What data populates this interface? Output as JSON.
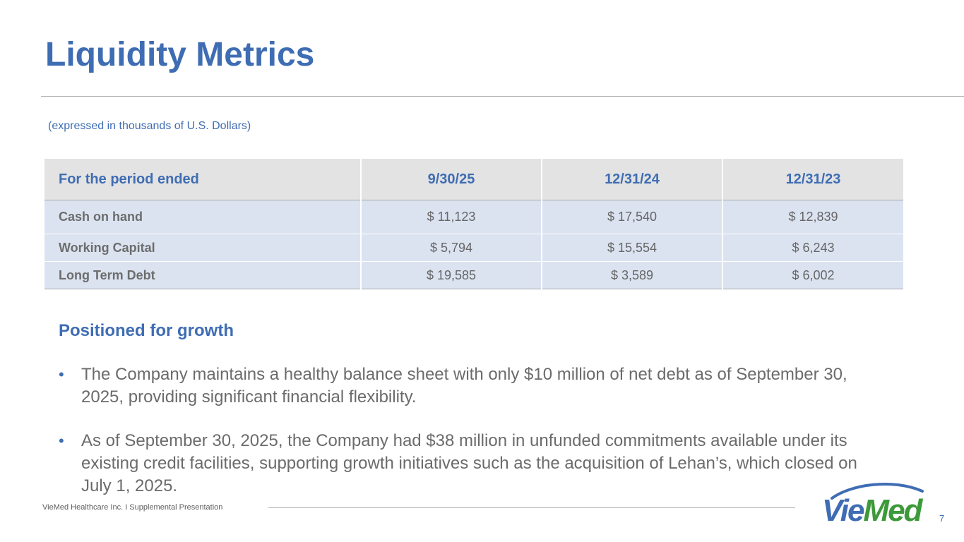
{
  "slide": {
    "title": "Liquidity Metrics",
    "units_note": "(expressed in thousands of U.S. Dollars)",
    "page_number": "7"
  },
  "table": {
    "headers": [
      "For the period ended",
      "9/30/25",
      "12/31/24",
      "12/31/23"
    ],
    "rows": [
      {
        "label": "Cash on hand",
        "values": [
          "$ 11,123",
          "$ 17,540",
          "$ 12,839"
        ]
      },
      {
        "label": "Working Capital",
        "values": [
          "$ 5,794",
          "$ 15,554",
          "$ 6,243"
        ]
      },
      {
        "label": "Long Term Debt",
        "values": [
          "$ 19,585",
          "$ 3,589",
          "$ 6,002"
        ]
      }
    ]
  },
  "growth": {
    "heading": "Positioned for growth",
    "bullets": [
      "The Company maintains a healthy balance sheet with only $10 million of net debt as of September 30, 2025, providing significant financial flexibility.",
      "As of September 30, 2025, the Company had $38 million in unfunded commitments available under its existing credit facilities, supporting growth initiatives such as the acquisition of Lehan’s, which closed on July 1, 2025."
    ]
  },
  "footer": {
    "text": "VieMed Healthcare Inc.  I  Supplemental Presentation",
    "logo_text": "VieMed"
  },
  "colors": {
    "accent_blue": "#3f6db3",
    "logo_green": "#3d9a3a",
    "table_header_bg": "#e3e3e3",
    "table_row_bg": "#dbe3f1"
  }
}
